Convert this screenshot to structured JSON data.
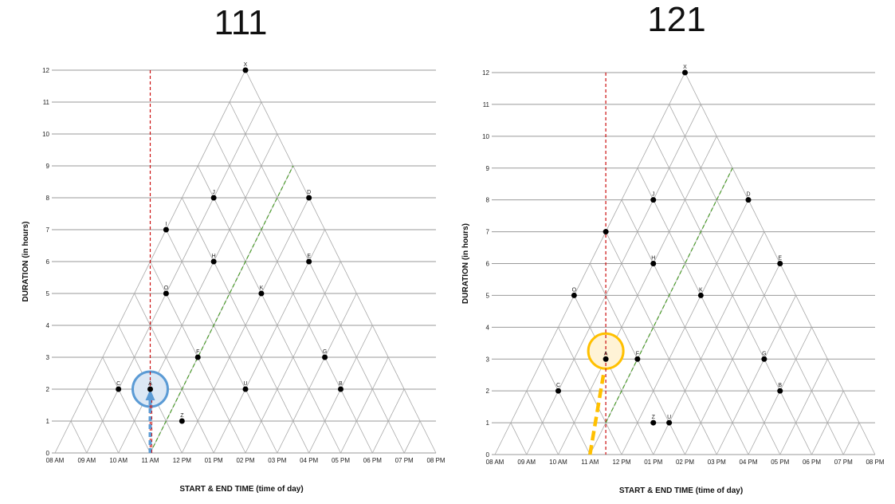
{
  "page_titles": {
    "left": "111",
    "right": "121"
  },
  "chart_data": [
    {
      "type": "scatter",
      "title": "111",
      "xlabel": "START & END TIME (time of day)",
      "ylabel": "DURATION (in hours)",
      "x_ticks": [
        "08 AM",
        "09 AM",
        "10 AM",
        "11 AM",
        "12 PM",
        "01 PM",
        "02 PM",
        "03 PM",
        "04 PM",
        "05 PM",
        "06 PM",
        "07 PM",
        "08 PM"
      ],
      "x_tick_labels_shown": [
        "08 AM",
        "09 AM",
        "10 AM",
        "11 AM",
        "12 PM",
        "01 PM",
        "02 PM",
        "03 PM",
        "04 PM",
        "05 PM",
        "06 PM",
        "07 PM",
        "08 PM"
      ],
      "xlim": [
        8,
        20
      ],
      "ylim": [
        0,
        12
      ],
      "y_ticks": [
        0,
        1,
        2,
        3,
        4,
        5,
        6,
        7,
        8,
        9,
        10,
        11,
        12
      ],
      "grid": true,
      "points": [
        {
          "label": "X",
          "x": 14,
          "y": 12
        },
        {
          "label": "J",
          "x": 13,
          "y": 8
        },
        {
          "label": "D",
          "x": 16,
          "y": 8
        },
        {
          "label": "I",
          "x": 11.5,
          "y": 7
        },
        {
          "label": "H",
          "x": 13,
          "y": 6
        },
        {
          "label": "E",
          "x": 16,
          "y": 6
        },
        {
          "label": "O",
          "x": 11.5,
          "y": 5
        },
        {
          "label": "K",
          "x": 14.5,
          "y": 5
        },
        {
          "label": "F",
          "x": 12.5,
          "y": 3
        },
        {
          "label": "G",
          "x": 16.5,
          "y": 3
        },
        {
          "label": "C",
          "x": 10,
          "y": 2
        },
        {
          "label": "A",
          "x": 11,
          "y": 2
        },
        {
          "label": "U",
          "x": 14,
          "y": 2
        },
        {
          "label": "B",
          "x": 17,
          "y": 2
        },
        {
          "label": "Z",
          "x": 12,
          "y": 1
        }
      ],
      "red_line_x": 11,
      "green_line": {
        "from": [
          11,
          0
        ],
        "to": [
          15.5,
          9
        ]
      },
      "highlight_circle": {
        "x": 11,
        "y": 2,
        "color": "#5b9bd5"
      },
      "arrow": {
        "from": [
          11,
          0
        ],
        "to": [
          11,
          2
        ],
        "color": "#5b9bd5"
      }
    },
    {
      "type": "scatter",
      "title": "121",
      "xlabel": "START & END TIME (time of day)",
      "ylabel": "DURATION (in hours)",
      "x_ticks": [
        "08 AM",
        "09 AM",
        "10 AM",
        "11 AM",
        "12 PM",
        "01 PM",
        "02 PM",
        "03 PM",
        "04 PM",
        "05 PM",
        "06 PM",
        "07 PM",
        "08 PM"
      ],
      "x_tick_labels_shown": [
        "08 AM",
        "09 AM",
        "10 AM",
        "11 AM",
        "12 PM",
        "01 PM",
        "02 PM",
        "03 PM",
        "04 PM",
        "05 PM",
        "06 PM",
        "07 PM",
        "08 PM"
      ],
      "xlim": [
        8,
        20
      ],
      "ylim": [
        0,
        12
      ],
      "y_ticks": [
        0,
        1,
        2,
        3,
        4,
        5,
        6,
        7,
        8,
        9,
        10,
        11,
        12
      ],
      "grid": true,
      "points": [
        {
          "label": "X",
          "x": 14,
          "y": 12
        },
        {
          "label": "J",
          "x": 13,
          "y": 8
        },
        {
          "label": "D",
          "x": 16,
          "y": 8
        },
        {
          "label": "",
          "x": 11.5,
          "y": 7
        },
        {
          "label": "H",
          "x": 13,
          "y": 6
        },
        {
          "label": "E",
          "x": 17,
          "y": 6
        },
        {
          "label": "O",
          "x": 10.5,
          "y": 5
        },
        {
          "label": "K",
          "x": 14.5,
          "y": 5
        },
        {
          "label": "A",
          "x": 11.5,
          "y": 3
        },
        {
          "label": "F",
          "x": 12.5,
          "y": 3
        },
        {
          "label": "G",
          "x": 16.5,
          "y": 3
        },
        {
          "label": "C",
          "x": 10,
          "y": 2
        },
        {
          "label": "B",
          "x": 17,
          "y": 2
        },
        {
          "label": "Z",
          "x": 13,
          "y": 1
        },
        {
          "label": "U",
          "x": 13.5,
          "y": 1
        }
      ],
      "red_line_x": 11.5,
      "green_line": {
        "from": [
          11.5,
          1
        ],
        "to": [
          15.5,
          9
        ]
      },
      "highlight_circle": {
        "x": 11.5,
        "y": 3.25,
        "color": "#ffc000"
      },
      "arrow": {
        "from": [
          11,
          0
        ],
        "to": [
          11.5,
          2.5
        ],
        "color": "#ffc000"
      }
    }
  ]
}
